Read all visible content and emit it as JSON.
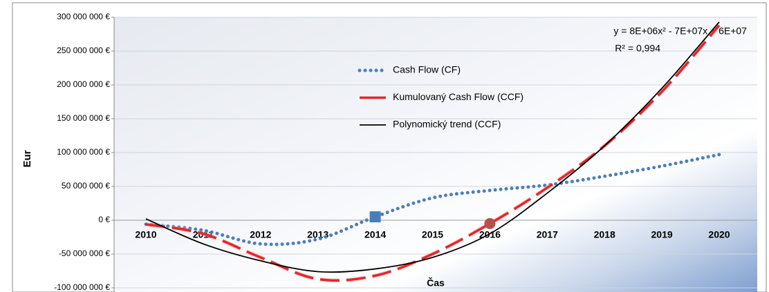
{
  "chart_data": {
    "type": "line",
    "y_label": "Eur",
    "x_label": "Čas",
    "annotations": [
      "y = 8E+06x² - 7E+07x + 6E+07",
      "R² = 0,994"
    ],
    "categories": [
      "2010",
      "2011",
      "2012",
      "2013",
      "2014",
      "2015",
      "2016",
      "2017",
      "2018",
      "2019",
      "2020"
    ],
    "series": [
      {
        "name": "Cash Flow (CF)",
        "color": "#4a7ebb",
        "style": "dotted",
        "highlight": "2014",
        "values": [
          -6000000,
          -15000000,
          -35000000,
          -28000000,
          5000000,
          33000000,
          44000000,
          52000000,
          65000000,
          80000000,
          97000000
        ]
      },
      {
        "name": "Kumulovaný Cash Flow (CCF)",
        "color": "#e3262b",
        "style": "dashed",
        "highlight": "2016",
        "values": [
          -6000000,
          -20000000,
          -55000000,
          -87000000,
          -82000000,
          -50000000,
          -5000000,
          48000000,
          110000000,
          190000000,
          288000000
        ]
      },
      {
        "name": "Polynomický trend (CCF)",
        "color": "#000000",
        "style": "solid",
        "values": [
          2000000,
          -35000000,
          -60000000,
          -76000000,
          -72000000,
          -55000000,
          -20000000,
          40000000,
          110000000,
          195000000,
          293000000
        ]
      }
    ],
    "ylim": [
      -100000000,
      300000000
    ],
    "yticks": [
      {
        "value": -100000000,
        "label": "-100 000 000 €"
      },
      {
        "value": -50000000,
        "label": "-50 000 000 €"
      },
      {
        "value": 0,
        "label": "0 €"
      },
      {
        "value": 50000000,
        "label": "50 000 000 €"
      },
      {
        "value": 100000000,
        "label": "100 000 000 €"
      },
      {
        "value": 150000000,
        "label": "150 000 000 €"
      },
      {
        "value": 200000000,
        "label": "200 000 000 €"
      },
      {
        "value": 250000000,
        "label": "250 000 000 €"
      },
      {
        "value": 300000000,
        "label": "300 000 000 €"
      }
    ],
    "grid": true
  }
}
